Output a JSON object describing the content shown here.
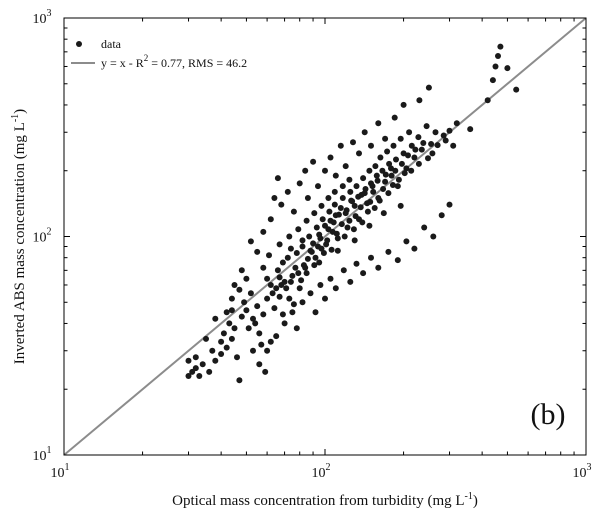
{
  "chart_data": {
    "type": "scatter",
    "panel_label": "(b)",
    "xlabel": "Optical mass concentration from turbidity (mg L",
    "xlabel_sup": "-1",
    "xlabel_end": ")",
    "ylabel": "Inverted ABS mass concentration (mg L",
    "ylabel_sup": "-1",
    "ylabel_end": ")",
    "x_scale": "log",
    "y_scale": "log",
    "xlim": [
      10,
      1000
    ],
    "ylim": [
      10,
      1000
    ],
    "x_ticks": [
      10,
      100,
      1000
    ],
    "y_ticks": [
      10,
      100,
      1000
    ],
    "tick_base": "10",
    "tick_exponents": [
      "1",
      "2",
      "3"
    ],
    "grid": false,
    "legend_position": "top-left",
    "colors": {
      "data": "#1a1a1a",
      "fit_line": "#8c8c8c",
      "axes": "#000000"
    },
    "series": [
      {
        "name": "data",
        "marker": "filled-circle",
        "points": [
          [
            30,
            23
          ],
          [
            31,
            24
          ],
          [
            32,
            25
          ],
          [
            33,
            23
          ],
          [
            34,
            26
          ],
          [
            30,
            27
          ],
          [
            32,
            28
          ],
          [
            36,
            24
          ],
          [
            38,
            27
          ],
          [
            37,
            30
          ],
          [
            40,
            29
          ],
          [
            40,
            33
          ],
          [
            42,
            31
          ],
          [
            41,
            36
          ],
          [
            44,
            34
          ],
          [
            43,
            40
          ],
          [
            45,
            38
          ],
          [
            46,
            28
          ],
          [
            47,
            22
          ],
          [
            48,
            43
          ],
          [
            49,
            50
          ],
          [
            50,
            46
          ],
          [
            52,
            55
          ],
          [
            53,
            42
          ],
          [
            55,
            48
          ],
          [
            56,
            36
          ],
          [
            58,
            44
          ],
          [
            60,
            52
          ],
          [
            62,
            60
          ],
          [
            63,
            55
          ],
          [
            65,
            58
          ],
          [
            66,
            70
          ],
          [
            67,
            65
          ],
          [
            69,
            76
          ],
          [
            70,
            62
          ],
          [
            72,
            80
          ],
          [
            73,
            52
          ],
          [
            75,
            66
          ],
          [
            77,
            72
          ],
          [
            78,
            84
          ],
          [
            80,
            58
          ],
          [
            82,
            90
          ],
          [
            83,
            74
          ],
          [
            85,
            68
          ],
          [
            87,
            100
          ],
          [
            88,
            86
          ],
          [
            90,
            93
          ],
          [
            92,
            80
          ],
          [
            93,
            110
          ],
          [
            95,
            102
          ],
          [
            97,
            88
          ],
          [
            98,
            120
          ],
          [
            100,
            112
          ],
          [
            102,
            96
          ],
          [
            104,
            130
          ],
          [
            105,
            118
          ],
          [
            107,
            105
          ],
          [
            109,
            140
          ],
          [
            110,
            125
          ],
          [
            112,
            98
          ],
          [
            115,
            135
          ],
          [
            117,
            150
          ],
          [
            120,
            128
          ],
          [
            122,
            110
          ],
          [
            125,
            160
          ],
          [
            127,
            145
          ],
          [
            130,
            138
          ],
          [
            132,
            170
          ],
          [
            135,
            120
          ],
          [
            138,
            155
          ],
          [
            140,
            185
          ],
          [
            143,
            165
          ],
          [
            145,
            142
          ],
          [
            148,
            200
          ],
          [
            150,
            175
          ],
          [
            153,
            160
          ],
          [
            156,
            210
          ],
          [
            158,
            190
          ],
          [
            160,
            150
          ],
          [
            163,
            230
          ],
          [
            166,
            200
          ],
          [
            170,
            178
          ],
          [
            173,
            245
          ],
          [
            176,
            215
          ],
          [
            180,
            190
          ],
          [
            183,
            260
          ],
          [
            187,
            225
          ],
          [
            190,
            170
          ],
          [
            195,
            280
          ],
          [
            200,
            240
          ],
          [
            205,
            205
          ],
          [
            210,
            300
          ],
          [
            215,
            260
          ],
          [
            220,
            230
          ],
          [
            228,
            285
          ],
          [
            235,
            250
          ],
          [
            245,
            320
          ],
          [
            255,
            265
          ],
          [
            265,
            300
          ],
          [
            285,
            290
          ],
          [
            300,
            305
          ],
          [
            320,
            330
          ],
          [
            360,
            310
          ],
          [
            420,
            420
          ],
          [
            440,
            520
          ],
          [
            450,
            600
          ],
          [
            470,
            740
          ],
          [
            500,
            590
          ],
          [
            540,
            470
          ],
          [
            460,
            670
          ],
          [
            48,
            70
          ],
          [
            52,
            95
          ],
          [
            55,
            85
          ],
          [
            58,
            105
          ],
          [
            62,
            120
          ],
          [
            64,
            150
          ],
          [
            66,
            185
          ],
          [
            68,
            140
          ],
          [
            72,
            160
          ],
          [
            76,
            130
          ],
          [
            80,
            175
          ],
          [
            84,
            200
          ],
          [
            86,
            150
          ],
          [
            90,
            220
          ],
          [
            94,
            170
          ],
          [
            100,
            200
          ],
          [
            105,
            230
          ],
          [
            110,
            190
          ],
          [
            115,
            260
          ],
          [
            120,
            210
          ],
          [
            128,
            270
          ],
          [
            135,
            240
          ],
          [
            142,
            300
          ],
          [
            150,
            260
          ],
          [
            160,
            330
          ],
          [
            170,
            280
          ],
          [
            185,
            350
          ],
          [
            200,
            400
          ],
          [
            230,
            420
          ],
          [
            250,
            480
          ],
          [
            60,
            30
          ],
          [
            65,
            35
          ],
          [
            70,
            40
          ],
          [
            75,
            45
          ],
          [
            78,
            38
          ],
          [
            82,
            50
          ],
          [
            88,
            55
          ],
          [
            92,
            45
          ],
          [
            96,
            60
          ],
          [
            100,
            52
          ],
          [
            105,
            64
          ],
          [
            110,
            58
          ],
          [
            118,
            70
          ],
          [
            125,
            62
          ],
          [
            132,
            75
          ],
          [
            140,
            68
          ],
          [
            150,
            80
          ],
          [
            160,
            72
          ],
          [
            175,
            85
          ],
          [
            190,
            78
          ],
          [
            205,
            95
          ],
          [
            220,
            88
          ],
          [
            240,
            110
          ],
          [
            260,
            100
          ],
          [
            280,
            125
          ],
          [
            300,
            140
          ],
          [
            45,
            60
          ],
          [
            50,
            64
          ],
          [
            54,
            40
          ],
          [
            57,
            32
          ],
          [
            35,
            34
          ],
          [
            38,
            42
          ],
          [
            42,
            45
          ],
          [
            44,
            52
          ],
          [
            47,
            57
          ],
          [
            51,
            38
          ],
          [
            53,
            30
          ],
          [
            56,
            26
          ],
          [
            59,
            24
          ],
          [
            62,
            33
          ],
          [
            64,
            47
          ],
          [
            67,
            53
          ],
          [
            69,
            44
          ],
          [
            71,
            58
          ],
          [
            74,
            62
          ],
          [
            76,
            49
          ],
          [
            79,
            68
          ],
          [
            81,
            63
          ],
          [
            84,
            72
          ],
          [
            86,
            79
          ],
          [
            89,
            85
          ],
          [
            91,
            74
          ],
          [
            94,
            90
          ],
          [
            96,
            98
          ],
          [
            99,
            84
          ],
          [
            101,
            92
          ],
          [
            103,
            108
          ],
          [
            106,
            87
          ],
          [
            108,
            116
          ],
          [
            111,
            103
          ],
          [
            113,
            126
          ],
          [
            116,
            114
          ],
          [
            119,
            100
          ],
          [
            121,
            132
          ],
          [
            124,
            118
          ],
          [
            126,
            146
          ],
          [
            129,
            108
          ],
          [
            131,
            124
          ],
          [
            134,
            152
          ],
          [
            137,
            136
          ],
          [
            139,
            116
          ],
          [
            142,
            158
          ],
          [
            146,
            130
          ],
          [
            149,
            144
          ],
          [
            152,
            170
          ],
          [
            155,
            135
          ],
          [
            159,
            180
          ],
          [
            162,
            146
          ],
          [
            167,
            165
          ],
          [
            171,
            192
          ],
          [
            175,
            158
          ],
          [
            179,
            205
          ],
          [
            182,
            172
          ],
          [
            186,
            200
          ],
          [
            192,
            182
          ],
          [
            197,
            215
          ],
          [
            202,
            195
          ],
          [
            208,
            235
          ],
          [
            214,
            200
          ],
          [
            222,
            250
          ],
          [
            229,
            215
          ],
          [
            238,
            268
          ],
          [
            248,
            228
          ],
          [
            258,
            240
          ],
          [
            270,
            262
          ],
          [
            290,
            275
          ],
          [
            310,
            260
          ],
          [
            44,
            46
          ],
          [
            58,
            72
          ],
          [
            61,
            82
          ],
          [
            67,
            92
          ],
          [
            73,
            100
          ],
          [
            79,
            108
          ],
          [
            85,
            118
          ],
          [
            91,
            128
          ],
          [
            97,
            138
          ],
          [
            103,
            150
          ],
          [
            109,
            160
          ],
          [
            117,
            170
          ],
          [
            124,
            182
          ],
          [
            60,
            64
          ],
          [
            68,
            60
          ],
          [
            74,
            88
          ],
          [
            82,
            96
          ],
          [
            95,
            76
          ],
          [
            112,
            86
          ],
          [
            130,
            96
          ],
          [
            148,
            112
          ],
          [
            168,
            128
          ],
          [
            195,
            138
          ]
        ]
      },
      {
        "name": "y = x - R",
        "name_sup": "2",
        "name_tail": " = 0.77, RMS = 46.2",
        "type": "line",
        "points": [
          [
            10,
            10
          ],
          [
            1000,
            1000
          ]
        ]
      }
    ]
  }
}
